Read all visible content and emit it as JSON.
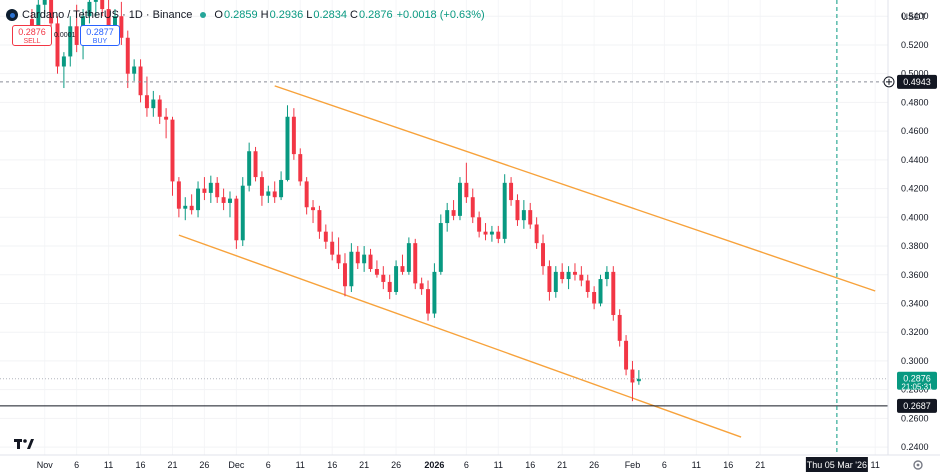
{
  "header": {
    "symbol": "Cardano / TetherUS · 1D · Binance",
    "open_label": "O",
    "open": "0.2859",
    "high_label": "H",
    "high": "0.2936",
    "low_label": "L",
    "low": "0.2834",
    "close_label": "C",
    "close": "0.2876",
    "change": "+0.0018 (+0.63%)"
  },
  "trade": {
    "sell_price": "0.2876",
    "sell_label": "SELL",
    "spread": "0.0001",
    "buy_price": "0.2877",
    "buy_label": "BUY"
  },
  "quote_currency": "USDT",
  "colors": {
    "up": "#089981",
    "down": "#f23645",
    "channel": "#f7a23b",
    "accent_line": "#089981"
  },
  "chart_data": {
    "type": "candlestick",
    "y_axis": {
      "range": [
        0.2345,
        0.5513
      ],
      "ticks": [
        "0.5400",
        "0.5200",
        "0.5000",
        "0.4800",
        "0.4600",
        "0.4400",
        "0.4200",
        "0.4000",
        "0.3800",
        "0.3600",
        "0.3400",
        "0.3200",
        "0.3000",
        "0.2800",
        "0.2600",
        "0.2400"
      ]
    },
    "x_axis": {
      "range": [
        "2025-10-25",
        "2026-03-13"
      ],
      "labels": [
        {
          "date": "2025-11-01",
          "text": "Nov"
        },
        {
          "date": "2025-11-06",
          "text": "6"
        },
        {
          "date": "2025-11-11",
          "text": "11"
        },
        {
          "date": "2025-11-16",
          "text": "16"
        },
        {
          "date": "2025-11-21",
          "text": "21"
        },
        {
          "date": "2025-11-26",
          "text": "26"
        },
        {
          "date": "2025-12-01",
          "text": "Dec"
        },
        {
          "date": "2025-12-06",
          "text": "6"
        },
        {
          "date": "2025-12-11",
          "text": "11"
        },
        {
          "date": "2025-12-16",
          "text": "16"
        },
        {
          "date": "2025-12-21",
          "text": "21"
        },
        {
          "date": "2025-12-26",
          "text": "26"
        },
        {
          "date": "2026-01-01",
          "text": "2026"
        },
        {
          "date": "2026-01-06",
          "text": "6"
        },
        {
          "date": "2026-01-11",
          "text": "11"
        },
        {
          "date": "2026-01-16",
          "text": "16"
        },
        {
          "date": "2026-01-21",
          "text": "21"
        },
        {
          "date": "2026-01-26",
          "text": "26"
        },
        {
          "date": "2026-02-01",
          "text": "Feb"
        },
        {
          "date": "2026-02-06",
          "text": "6"
        },
        {
          "date": "2026-02-11",
          "text": "11"
        },
        {
          "date": "2026-02-16",
          "text": "16"
        },
        {
          "date": "2026-02-21",
          "text": "21"
        },
        {
          "date": "2026-03-11",
          "text": "11"
        }
      ],
      "crosshair_date": "2026-03-05",
      "crosshair_label": "Thu 05 Mar '26"
    },
    "candles": [
      [
        "2025-10-30",
        0.538,
        0.545,
        0.522,
        0.528
      ],
      [
        "2025-10-31",
        0.528,
        0.56,
        0.52,
        0.548
      ],
      [
        "2025-11-01",
        0.548,
        0.56,
        0.54,
        0.552
      ],
      [
        "2025-11-02",
        0.552,
        0.56,
        0.53,
        0.535
      ],
      [
        "2025-11-03",
        0.535,
        0.54,
        0.5,
        0.505
      ],
      [
        "2025-11-04",
        0.505,
        0.515,
        0.49,
        0.512
      ],
      [
        "2025-11-05",
        0.512,
        0.54,
        0.505,
        0.533
      ],
      [
        "2025-11-06",
        0.533,
        0.548,
        0.515,
        0.52
      ],
      [
        "2025-11-07",
        0.52,
        0.545,
        0.51,
        0.54
      ],
      [
        "2025-11-08",
        0.54,
        0.56,
        0.535,
        0.55
      ],
      [
        "2025-11-09",
        0.55,
        0.558,
        0.54,
        0.552
      ],
      [
        "2025-11-10",
        0.552,
        0.56,
        0.54,
        0.545
      ],
      [
        "2025-11-11",
        0.545,
        0.552,
        0.525,
        0.53
      ],
      [
        "2025-11-12",
        0.53,
        0.545,
        0.525,
        0.54
      ],
      [
        "2025-11-13",
        0.54,
        0.55,
        0.52,
        0.525
      ],
      [
        "2025-11-14",
        0.525,
        0.53,
        0.49,
        0.5
      ],
      [
        "2025-11-15",
        0.5,
        0.51,
        0.495,
        0.505
      ],
      [
        "2025-11-16",
        0.505,
        0.51,
        0.48,
        0.485
      ],
      [
        "2025-11-17",
        0.485,
        0.498,
        0.47,
        0.476
      ],
      [
        "2025-11-18",
        0.476,
        0.488,
        0.47,
        0.482
      ],
      [
        "2025-11-19",
        0.482,
        0.485,
        0.465,
        0.47
      ],
      [
        "2025-11-20",
        0.47,
        0.476,
        0.455,
        0.468
      ],
      [
        "2025-11-21",
        0.468,
        0.47,
        0.415,
        0.425
      ],
      [
        "2025-11-22",
        0.425,
        0.428,
        0.4,
        0.406
      ],
      [
        "2025-11-23",
        0.406,
        0.414,
        0.398,
        0.408
      ],
      [
        "2025-11-24",
        0.408,
        0.416,
        0.402,
        0.405
      ],
      [
        "2025-11-25",
        0.405,
        0.425,
        0.4,
        0.42
      ],
      [
        "2025-11-26",
        0.42,
        0.428,
        0.412,
        0.417
      ],
      [
        "2025-11-27",
        0.417,
        0.429,
        0.41,
        0.424
      ],
      [
        "2025-11-28",
        0.424,
        0.428,
        0.41,
        0.414
      ],
      [
        "2025-11-29",
        0.414,
        0.42,
        0.405,
        0.41
      ],
      [
        "2025-11-30",
        0.41,
        0.418,
        0.4,
        0.413
      ],
      [
        "2025-12-01",
        0.413,
        0.415,
        0.378,
        0.384
      ],
      [
        "2025-12-02",
        0.384,
        0.428,
        0.38,
        0.422
      ],
      [
        "2025-12-03",
        0.422,
        0.452,
        0.418,
        0.446
      ],
      [
        "2025-12-04",
        0.446,
        0.449,
        0.425,
        0.428
      ],
      [
        "2025-12-05",
        0.428,
        0.432,
        0.408,
        0.415
      ],
      [
        "2025-12-06",
        0.415,
        0.422,
        0.41,
        0.418
      ],
      [
        "2025-12-07",
        0.418,
        0.425,
        0.41,
        0.414
      ],
      [
        "2025-12-08",
        0.414,
        0.432,
        0.412,
        0.426
      ],
      [
        "2025-12-09",
        0.426,
        0.478,
        0.425,
        0.47
      ],
      [
        "2025-12-10",
        0.47,
        0.476,
        0.44,
        0.444
      ],
      [
        "2025-12-11",
        0.444,
        0.448,
        0.422,
        0.425
      ],
      [
        "2025-12-12",
        0.425,
        0.428,
        0.402,
        0.407
      ],
      [
        "2025-12-13",
        0.407,
        0.412,
        0.396,
        0.405
      ],
      [
        "2025-12-14",
        0.405,
        0.408,
        0.385,
        0.39
      ],
      [
        "2025-12-15",
        0.39,
        0.395,
        0.378,
        0.383
      ],
      [
        "2025-12-16",
        0.383,
        0.39,
        0.37,
        0.374
      ],
      [
        "2025-12-17",
        0.374,
        0.386,
        0.364,
        0.368
      ],
      [
        "2025-12-18",
        0.368,
        0.375,
        0.345,
        0.352
      ],
      [
        "2025-12-19",
        0.352,
        0.382,
        0.348,
        0.376
      ],
      [
        "2025-12-20",
        0.376,
        0.38,
        0.364,
        0.368
      ],
      [
        "2025-12-21",
        0.368,
        0.38,
        0.362,
        0.374
      ],
      [
        "2025-12-22",
        0.374,
        0.378,
        0.362,
        0.364
      ],
      [
        "2025-12-23",
        0.364,
        0.37,
        0.358,
        0.36
      ],
      [
        "2025-12-24",
        0.36,
        0.366,
        0.35,
        0.355
      ],
      [
        "2025-12-25",
        0.355,
        0.36,
        0.343,
        0.348
      ],
      [
        "2025-12-26",
        0.348,
        0.37,
        0.346,
        0.366
      ],
      [
        "2025-12-27",
        0.366,
        0.374,
        0.36,
        0.362
      ],
      [
        "2025-12-28",
        0.362,
        0.386,
        0.36,
        0.382
      ],
      [
        "2025-12-29",
        0.382,
        0.385,
        0.35,
        0.354
      ],
      [
        "2025-12-30",
        0.354,
        0.358,
        0.346,
        0.35
      ],
      [
        "2025-12-31",
        0.35,
        0.356,
        0.328,
        0.333
      ],
      [
        "2026-01-01",
        0.333,
        0.368,
        0.33,
        0.362
      ],
      [
        "2026-01-02",
        0.362,
        0.402,
        0.36,
        0.396
      ],
      [
        "2026-01-03",
        0.396,
        0.41,
        0.39,
        0.405
      ],
      [
        "2026-01-04",
        0.405,
        0.412,
        0.398,
        0.401
      ],
      [
        "2026-01-05",
        0.401,
        0.428,
        0.398,
        0.424
      ],
      [
        "2026-01-06",
        0.424,
        0.438,
        0.41,
        0.414
      ],
      [
        "2026-01-07",
        0.414,
        0.42,
        0.396,
        0.4
      ],
      [
        "2026-01-08",
        0.4,
        0.404,
        0.386,
        0.39
      ],
      [
        "2026-01-09",
        0.39,
        0.396,
        0.384,
        0.388
      ],
      [
        "2026-01-10",
        0.388,
        0.394,
        0.383,
        0.39
      ],
      [
        "2026-01-11",
        0.39,
        0.394,
        0.382,
        0.385
      ],
      [
        "2026-01-12",
        0.385,
        0.43,
        0.382,
        0.424
      ],
      [
        "2026-01-13",
        0.424,
        0.428,
        0.408,
        0.412
      ],
      [
        "2026-01-14",
        0.412,
        0.416,
        0.394,
        0.398
      ],
      [
        "2026-01-15",
        0.398,
        0.412,
        0.392,
        0.405
      ],
      [
        "2026-01-16",
        0.405,
        0.41,
        0.392,
        0.395
      ],
      [
        "2026-01-17",
        0.395,
        0.4,
        0.378,
        0.382
      ],
      [
        "2026-01-18",
        0.382,
        0.388,
        0.36,
        0.366
      ],
      [
        "2026-01-19",
        0.366,
        0.37,
        0.342,
        0.348
      ],
      [
        "2026-01-20",
        0.348,
        0.366,
        0.344,
        0.362
      ],
      [
        "2026-01-21",
        0.362,
        0.368,
        0.354,
        0.357
      ],
      [
        "2026-01-22",
        0.357,
        0.366,
        0.35,
        0.362
      ],
      [
        "2026-01-23",
        0.362,
        0.368,
        0.356,
        0.36
      ],
      [
        "2026-01-24",
        0.36,
        0.366,
        0.352,
        0.356
      ],
      [
        "2026-01-25",
        0.356,
        0.36,
        0.344,
        0.348
      ],
      [
        "2026-01-26",
        0.348,
        0.352,
        0.336,
        0.34
      ],
      [
        "2026-01-27",
        0.34,
        0.36,
        0.338,
        0.357
      ],
      [
        "2026-01-28",
        0.357,
        0.366,
        0.352,
        0.362
      ],
      [
        "2026-01-29",
        0.362,
        0.366,
        0.328,
        0.332
      ],
      [
        "2026-01-30",
        0.332,
        0.336,
        0.31,
        0.314
      ],
      [
        "2026-01-31",
        0.314,
        0.318,
        0.29,
        0.294
      ],
      [
        "2026-02-01",
        0.294,
        0.3,
        0.272,
        0.285
      ],
      [
        "2026-02-02",
        0.2859,
        0.2936,
        0.2834,
        0.2876
      ]
    ],
    "levels": [
      {
        "value": 0.4943,
        "label": "0.4943",
        "style": "dashed"
      },
      {
        "value": 0.2876,
        "label": "0.2876",
        "sublabel": "21:05:31",
        "style": "dotted"
      },
      {
        "value": 0.2687,
        "label": "0.2687",
        "style": "solid"
      }
    ],
    "channel": {
      "upper": [
        [
          "2025-12-07",
          0.4915
        ],
        [
          "2026-03-11",
          0.3487
        ]
      ],
      "lower": [
        [
          "2025-11-22",
          0.3876
        ],
        [
          "2026-02-18",
          0.247
        ]
      ]
    }
  }
}
